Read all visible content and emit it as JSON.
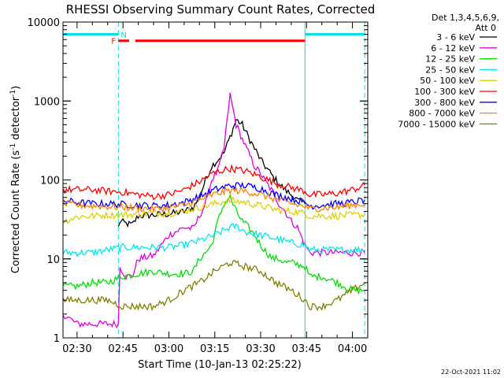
{
  "chart_data": {
    "type": "line",
    "title": "RHESSI Observing Summary Count Rates, Corrected",
    "xlabel": "Start Time (10-Jan-13 02:25:22)",
    "ylabel_main": "Corrected Count Rate (s",
    "ylabel_sup": "-1",
    "ylabel_mid": " detector",
    "ylabel_end": ")",
    "y_scale": "log",
    "x_range_min": [
      25.4,
      125
    ],
    "ylim": [
      1,
      10000
    ],
    "x_ticks": [
      {
        "min": 30,
        "label": "02:30"
      },
      {
        "min": 45,
        "label": "02:45"
      },
      {
        "min": 60,
        "label": "03:00"
      },
      {
        "min": 75,
        "label": "03:15"
      },
      {
        "min": 90,
        "label": "03:30"
      },
      {
        "min": 105,
        "label": "03:45"
      },
      {
        "min": 120,
        "label": "04:00"
      }
    ],
    "y_ticks": [
      {
        "value": 1,
        "label": "1"
      },
      {
        "value": 10,
        "label": "10"
      },
      {
        "value": 100,
        "label": "100"
      },
      {
        "value": 1000,
        "label": "1000"
      },
      {
        "value": 10000,
        "label": "10000"
      }
    ],
    "legend_position": "right",
    "legend_header": [
      "Det 1,3,4,5,6,9,",
      "Att 0"
    ],
    "timestamp": "22-Oct-2021 11:02",
    "night_intervals": [
      [
        25.4,
        43.5
      ],
      [
        104.5,
        124.0
      ]
    ],
    "flags": {
      "night_label": "N",
      "saa_label": "F",
      "night_flag_level": 7000,
      "saa_flag_level": 5800,
      "saa_intervals": [
        [
          43.5,
          47.0
        ],
        [
          49.0,
          104.5
        ]
      ]
    },
    "series": [
      {
        "name": "3 - 6 keV",
        "color": "#000000",
        "x": [
          43.5,
          44,
          46,
          48,
          50,
          55,
          60,
          65,
          68,
          70,
          72,
          74,
          76,
          78,
          80,
          82,
          84,
          86,
          88,
          90,
          92,
          94,
          96,
          98,
          100,
          102,
          104.5
        ],
        "y": [
          25,
          30,
          28,
          27,
          35,
          36,
          37,
          40,
          45,
          60,
          100,
          150,
          180,
          220,
          350,
          580,
          500,
          350,
          250,
          180,
          140,
          110,
          90,
          75,
          65,
          55,
          50
        ]
      },
      {
        "name": "6 - 12 keV",
        "color": "#e000e0",
        "x": [
          25.5,
          30,
          35,
          40,
          43.5,
          44,
          46,
          48,
          50,
          55,
          60,
          65,
          68,
          70,
          72,
          74,
          76,
          78,
          80,
          82,
          84,
          86,
          88,
          90,
          92,
          94,
          96,
          98,
          100,
          102,
          104.5,
          106,
          110,
          115,
          120,
          124
        ],
        "y": [
          2,
          1.5,
          1.5,
          1.5,
          1.5,
          8,
          6,
          6,
          10,
          11,
          20,
          25,
          24,
          35,
          50,
          100,
          130,
          250,
          1200,
          500,
          330,
          220,
          150,
          120,
          90,
          70,
          50,
          40,
          30,
          25,
          15,
          12,
          12,
          12,
          12,
          12
        ]
      },
      {
        "name": "12 - 25 keV",
        "color": "#00e000",
        "x": [
          25.5,
          30,
          35,
          40,
          45,
          50,
          55,
          60,
          65,
          68,
          70,
          72,
          74,
          76,
          78,
          80,
          82,
          84,
          86,
          88,
          90,
          92,
          94,
          96,
          98,
          100,
          104.5,
          106,
          110,
          115,
          120,
          124
        ],
        "y": [
          4.5,
          4.5,
          5,
          5,
          6,
          6.5,
          7,
          6.5,
          6.5,
          7,
          10,
          12,
          15,
          30,
          50,
          60,
          40,
          30,
          25,
          20,
          15,
          12,
          10,
          10,
          9,
          9,
          8,
          6,
          6,
          5,
          4,
          4
        ]
      },
      {
        "name": "25 - 50 keV",
        "color": "#00e8e8",
        "x": [
          25.5,
          30,
          35,
          40,
          45,
          50,
          55,
          60,
          65,
          70,
          75,
          80,
          82,
          85,
          90,
          95,
          100,
          104.5,
          106,
          110,
          115,
          120,
          124
        ],
        "y": [
          12,
          12,
          12,
          13,
          14,
          14,
          14,
          14,
          15,
          17,
          20,
          25,
          26,
          22,
          20,
          18,
          16,
          15,
          13,
          13,
          13,
          13,
          13
        ]
      },
      {
        "name": "50 - 100 keV",
        "color": "#e0d000",
        "x": [
          25.5,
          30,
          35,
          40,
          45,
          50,
          55,
          60,
          65,
          70,
          75,
          80,
          85,
          90,
          95,
          100,
          104.5,
          106,
          110,
          115,
          120,
          124
        ],
        "y": [
          30,
          34,
          35,
          36,
          36,
          37,
          38,
          38,
          40,
          45,
          50,
          55,
          52,
          47,
          42,
          40,
          38,
          35,
          35,
          35,
          36,
          36
        ]
      },
      {
        "name": "100 - 300 keV",
        "color": "#ff0000",
        "x": [
          25.5,
          30,
          35,
          40,
          45,
          50,
          55,
          60,
          65,
          70,
          75,
          80,
          85,
          90,
          95,
          100,
          104.5,
          106,
          110,
          115,
          120,
          124
        ],
        "y": [
          75,
          75,
          75,
          72,
          70,
          65,
          62,
          65,
          75,
          95,
          125,
          140,
          130,
          110,
          90,
          80,
          72,
          65,
          65,
          68,
          75,
          85
        ]
      },
      {
        "name": "300 - 800 keV",
        "color": "#0000ff",
        "x": [
          25.5,
          30,
          35,
          40,
          45,
          50,
          55,
          60,
          65,
          70,
          75,
          80,
          85,
          90,
          95,
          100,
          104.5,
          106,
          110,
          115,
          120,
          124
        ],
        "y": [
          55,
          52,
          50,
          50,
          49,
          48,
          47,
          48,
          52,
          62,
          75,
          85,
          85,
          78,
          65,
          58,
          52,
          47,
          48,
          50,
          52,
          56
        ]
      },
      {
        "name": "800 - 7000 keV",
        "color": "#ff8000",
        "x": [
          25.5,
          30,
          35,
          40,
          45,
          50,
          55,
          60,
          65,
          70,
          75,
          80,
          85,
          90,
          95,
          100,
          104.5,
          106,
          110,
          115,
          120,
          124
        ],
        "y": [
          50,
          48,
          47,
          46,
          45,
          44,
          43,
          44,
          48,
          56,
          66,
          74,
          72,
          65,
          57,
          50,
          46,
          43,
          44,
          45,
          48,
          50
        ]
      },
      {
        "name": "7000 - 15000 keV",
        "color": "#808000",
        "x": [
          25.5,
          30,
          35,
          40,
          45,
          50,
          55,
          60,
          65,
          70,
          75,
          80,
          85,
          90,
          95,
          100,
          104.5,
          106,
          110,
          115,
          120,
          124
        ],
        "y": [
          3,
          3,
          3,
          3,
          2.5,
          2.5,
          2.5,
          3,
          4,
          5,
          7,
          9,
          8,
          7,
          5,
          4,
          3,
          2.5,
          2.5,
          3,
          4,
          5
        ]
      }
    ]
  }
}
